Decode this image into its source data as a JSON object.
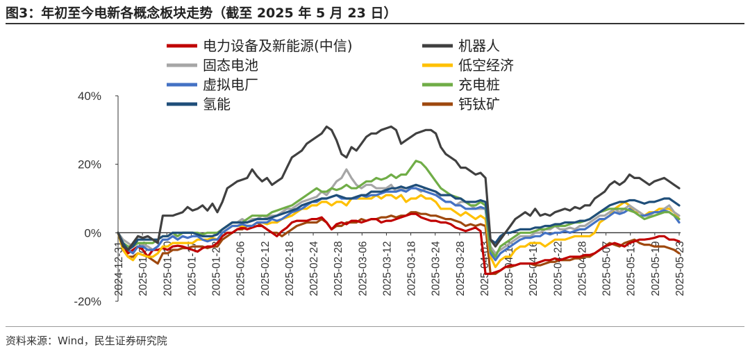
{
  "header": {
    "title": "图3：年初至今电新各概念板块走势（截至 2025 年 5 月 23 日）"
  },
  "footer": {
    "source": "资料来源：Wind，民生证券研究院"
  },
  "chart_data": {
    "type": "line",
    "title": "",
    "xlabel": "",
    "ylabel": "",
    "ylim": [
      -20,
      40
    ],
    "y_ticks": [
      "40%",
      "20%",
      "0%",
      "-20%"
    ],
    "y_tick_values": [
      40,
      20,
      0,
      -20
    ],
    "x_ticks": [
      "2024-12-31",
      "2025-01-06",
      "2025-01-10",
      "2025-01-17",
      "2025-01-23",
      "2025-02-06",
      "2025-02-12",
      "2025-02-18",
      "2025-02-24",
      "2025-02-28",
      "2025-03-06",
      "2025-03-12",
      "2025-03-18",
      "2025-03-24",
      "2025-03-28",
      "2025-04-03",
      "2025-04-10",
      "2025-04-16",
      "2025-04-22",
      "2025-04-28",
      "2025-05-07",
      "2025-05-13",
      "2025-05-19",
      "2025-05-23"
    ],
    "grid": false,
    "legend_position": "top",
    "series": [
      {
        "name": "电力设备及新能源(中信)",
        "color": "#c00000",
        "values": [
          0,
          -3.5,
          -6,
          -5,
          -4,
          -5,
          -7,
          -5,
          -5,
          -4.5,
          -5,
          -4,
          -3.8,
          -4,
          -4.5,
          -5,
          -5.5,
          -4.5,
          -4,
          -4,
          -3,
          -1,
          0,
          0,
          1,
          1.5,
          1,
          1.5,
          2,
          2,
          1,
          0,
          -1,
          0.5,
          1.5,
          3,
          3.5,
          3.5,
          3.5,
          4,
          4,
          4.5,
          3,
          1,
          2.5,
          3,
          2.5,
          3.5,
          3.5,
          3,
          3.5,
          4,
          4,
          3,
          3.5,
          3.5,
          4,
          4.5,
          5,
          5.5,
          5.5,
          4.5,
          4,
          3.5,
          3.5,
          3,
          3,
          2.5,
          1.5,
          1,
          0.5,
          1,
          1.5,
          0.5,
          -12,
          -12,
          -11.5,
          -11,
          -10,
          -9.5,
          -9.5,
          -9,
          -9,
          -9,
          -9,
          -8.5,
          -8,
          -8,
          -7.5,
          -8,
          -7.5,
          -7,
          -7,
          -7,
          -6.5,
          -6.5,
          -6,
          -5,
          -4,
          -3.5,
          -3,
          -3.5,
          -4,
          -3,
          -2.5,
          -2,
          -2,
          -1.8,
          -1.5,
          -1,
          -1,
          -2,
          -2,
          -2.5
        ]
      },
      {
        "name": "机器人",
        "color": "#404040",
        "values": [
          0,
          -4,
          -5,
          -3,
          -1,
          -1.5,
          -1,
          -2,
          -3,
          5,
          5,
          5,
          5.5,
          6,
          7.5,
          6.5,
          7,
          8,
          6.5,
          8.5,
          6,
          9,
          13,
          14,
          15,
          15.5,
          16,
          18.5,
          16.5,
          15,
          16,
          14,
          15,
          16,
          19,
          22,
          23,
          24,
          26,
          27,
          28,
          29,
          31,
          30,
          27,
          23,
          22,
          25,
          24,
          26,
          28,
          29,
          29,
          30,
          30.5,
          31,
          30,
          26,
          27,
          28,
          29,
          29.5,
          30,
          30,
          29,
          25,
          23,
          22,
          21,
          19,
          19,
          18,
          17,
          17.5,
          16,
          -2,
          -4,
          -2,
          0,
          2,
          4,
          5,
          6,
          5,
          7,
          5,
          5.5,
          5,
          6,
          6.5,
          7,
          6.5,
          7.5,
          7,
          8,
          8,
          10,
          11,
          12,
          14,
          15,
          14,
          15,
          17,
          16,
          16,
          15,
          14,
          15,
          15.5,
          16,
          15,
          14,
          13
        ]
      },
      {
        "name": "固态电池",
        "color": "#a6a6a6",
        "values": [
          0,
          -2,
          -3,
          -4,
          -3,
          -3.5,
          -4,
          -5,
          -4,
          -2,
          -2,
          -1,
          -1,
          0,
          0,
          0,
          -0.5,
          -1,
          -1,
          -1,
          0,
          1,
          2,
          3,
          3,
          4,
          3,
          4,
          4,
          5,
          4.5,
          5,
          5,
          6,
          7,
          7,
          8,
          9,
          9.5,
          10,
          10.5,
          12,
          11,
          13,
          15,
          16,
          18.5,
          16,
          14,
          13,
          14,
          14,
          13,
          13,
          13,
          14,
          12,
          13,
          12,
          13,
          13,
          12,
          13,
          12.5,
          12,
          10,
          9,
          9,
          8,
          9,
          9,
          8,
          7,
          7,
          7,
          -4,
          -6,
          -5,
          -4,
          -3,
          -2,
          -1,
          -1,
          -1,
          0,
          0,
          1,
          1,
          2,
          1,
          1,
          1.5,
          1,
          2,
          2,
          3,
          4,
          5,
          5,
          6,
          7,
          6,
          7,
          8,
          7,
          6,
          5,
          5,
          6,
          6,
          7,
          8,
          6,
          5
        ]
      },
      {
        "name": "低空经济",
        "color": "#ffc000",
        "values": [
          0,
          -5,
          -7,
          -8,
          -6,
          -6.5,
          -7,
          -7,
          -6,
          -4,
          -4,
          -3,
          -3,
          -3,
          -3,
          -3,
          -2,
          -2,
          -2,
          -1.5,
          -2,
          0,
          1,
          2,
          2,
          2,
          2,
          2,
          3,
          3,
          2.5,
          3,
          3,
          4,
          4.5,
          5,
          6,
          7,
          7,
          8,
          8,
          9,
          9,
          8,
          9,
          9,
          8,
          10,
          10,
          10,
          10,
          10,
          11,
          10,
          11,
          11,
          10,
          11,
          9,
          10,
          10,
          11,
          10,
          10,
          9,
          7,
          7,
          7,
          6,
          5,
          6,
          5,
          4,
          5,
          4,
          -7,
          -10,
          -8,
          -7,
          -7,
          -5,
          -4,
          -4,
          -3,
          -3,
          -3,
          -4,
          -3,
          -2,
          -2,
          -2,
          -1.5,
          -1,
          -1,
          -1,
          -1,
          0,
          3,
          4,
          5,
          7,
          8,
          9,
          8,
          6,
          6,
          5,
          6,
          6,
          7,
          7,
          7,
          6,
          4
        ]
      },
      {
        "name": "虚拟电厂",
        "color": "#4472c4",
        "values": [
          0,
          -3,
          -5,
          -6,
          -4,
          -4,
          -5,
          -5,
          -4,
          -2,
          -2,
          -1,
          -2,
          -1,
          -1.5,
          -1,
          -1,
          -2,
          -2.5,
          -2,
          -2,
          0,
          1,
          2,
          2,
          2.5,
          2,
          2,
          3,
          3,
          3,
          4,
          3.5,
          4,
          5,
          6,
          6.5,
          7,
          8,
          9,
          9,
          10,
          10,
          10.5,
          11,
          10,
          10,
          10,
          10,
          11,
          10.5,
          11,
          11,
          11.5,
          12,
          12,
          12,
          12.5,
          12,
          13,
          13,
          12.5,
          12,
          11.5,
          11,
          10,
          9,
          9,
          8,
          8,
          7,
          7,
          7,
          7.5,
          7,
          -6,
          -8,
          -6,
          -5,
          -4,
          -3,
          -2,
          -1.5,
          -1.5,
          -1,
          -1,
          0,
          -0.5,
          0,
          0,
          0.5,
          0,
          0.5,
          1,
          1,
          2,
          3,
          4,
          4,
          5,
          6,
          5.5,
          6,
          7,
          6,
          5,
          5,
          5.5,
          6,
          6,
          6.5,
          6,
          5,
          3
        ]
      },
      {
        "name": "充电桩",
        "color": "#70ad47",
        "values": [
          0,
          -3,
          -4,
          -4,
          -3,
          -3,
          -3,
          -3,
          -2,
          -1,
          -1,
          0,
          -1,
          0,
          0,
          0,
          0,
          -0.5,
          0,
          0,
          0,
          1,
          2,
          3,
          3,
          3,
          4,
          5,
          5,
          5,
          5,
          6,
          6.5,
          7,
          7.5,
          8,
          9,
          10,
          11,
          12,
          13,
          12,
          12,
          13,
          12.5,
          13,
          14,
          13,
          13,
          14,
          15,
          15,
          16,
          15.5,
          16,
          17,
          16,
          17,
          17,
          19,
          21,
          20.5,
          19,
          17,
          15,
          13,
          12,
          11,
          10.5,
          10,
          9,
          8,
          8,
          9,
          8,
          -5,
          -7,
          -4,
          -3,
          -2,
          -1,
          0,
          0,
          0,
          0.5,
          1,
          1,
          1.5,
          2,
          2,
          2,
          2.5,
          3,
          3,
          3.5,
          4,
          5,
          6,
          6.5,
          7,
          7,
          7,
          7,
          6.5,
          6,
          5,
          4,
          4.5,
          5,
          5.5,
          6,
          6,
          5,
          4
        ]
      },
      {
        "name": "氢能",
        "color": "#1f4e79",
        "values": [
          0,
          -3,
          -5,
          -4,
          -2,
          -2,
          -2,
          -2,
          -2,
          -1,
          -1,
          0,
          0,
          0,
          0,
          0,
          -0.5,
          -1,
          -1,
          -1,
          -0.5,
          1,
          2,
          3,
          3,
          3,
          3,
          3.5,
          4,
          4,
          4,
          4.5,
          5,
          5.5,
          6,
          6.5,
          7,
          8,
          8.5,
          9,
          9.5,
          10,
          10,
          10.5,
          11,
          10.5,
          10,
          10,
          10.5,
          11,
          11,
          12,
          12,
          12,
          12.5,
          13,
          13,
          13.5,
          13,
          13.5,
          14,
          13.5,
          13,
          12.5,
          12,
          11,
          11,
          11,
          10,
          10,
          9,
          9,
          9,
          9.5,
          9,
          -2,
          -3,
          -1,
          0,
          0,
          0.5,
          1,
          1,
          1,
          1.5,
          1.5,
          2,
          2,
          2.5,
          2.5,
          3,
          3,
          3,
          3.5,
          3.5,
          4,
          5,
          6,
          7,
          8,
          8.5,
          9,
          9,
          9.5,
          9.5,
          9,
          8.5,
          9,
          9,
          9.5,
          10,
          10,
          9,
          8
        ]
      },
      {
        "name": "钙钛矿",
        "color": "#9e480e",
        "values": [
          0,
          -5,
          -7,
          -7,
          -6,
          -6.5,
          -7,
          -8,
          -9,
          -6,
          -6,
          -5,
          -5,
          -4.5,
          -4.5,
          -4,
          -4,
          -4,
          -4.5,
          -4,
          -4,
          -2,
          -1,
          0,
          1,
          1,
          2,
          2,
          3,
          2,
          1,
          0,
          0,
          -1,
          0,
          1,
          2,
          2.5,
          3,
          3,
          3,
          4,
          3,
          1,
          2,
          2,
          3,
          3,
          3,
          4,
          3.5,
          4,
          4,
          4.5,
          4.5,
          5,
          4.5,
          5,
          5,
          6,
          6,
          5.5,
          5.5,
          5,
          5,
          4.5,
          4,
          4,
          3.5,
          3,
          2,
          2.5,
          2,
          2.5,
          2,
          -12,
          -12,
          -11,
          -10,
          -10,
          -9.5,
          -9,
          -9,
          -9,
          -9.5,
          -9.5,
          -9,
          -8.5,
          -8.5,
          -8,
          -8,
          -8,
          -7.5,
          -7.5,
          -7,
          -7,
          -6,
          -5,
          -4,
          -3,
          -3.5,
          -4,
          -3,
          -2.5,
          -2,
          -3,
          -3.5,
          -3.5,
          -4,
          -4,
          -4,
          -4.5,
          -5,
          -6
        ]
      }
    ]
  }
}
